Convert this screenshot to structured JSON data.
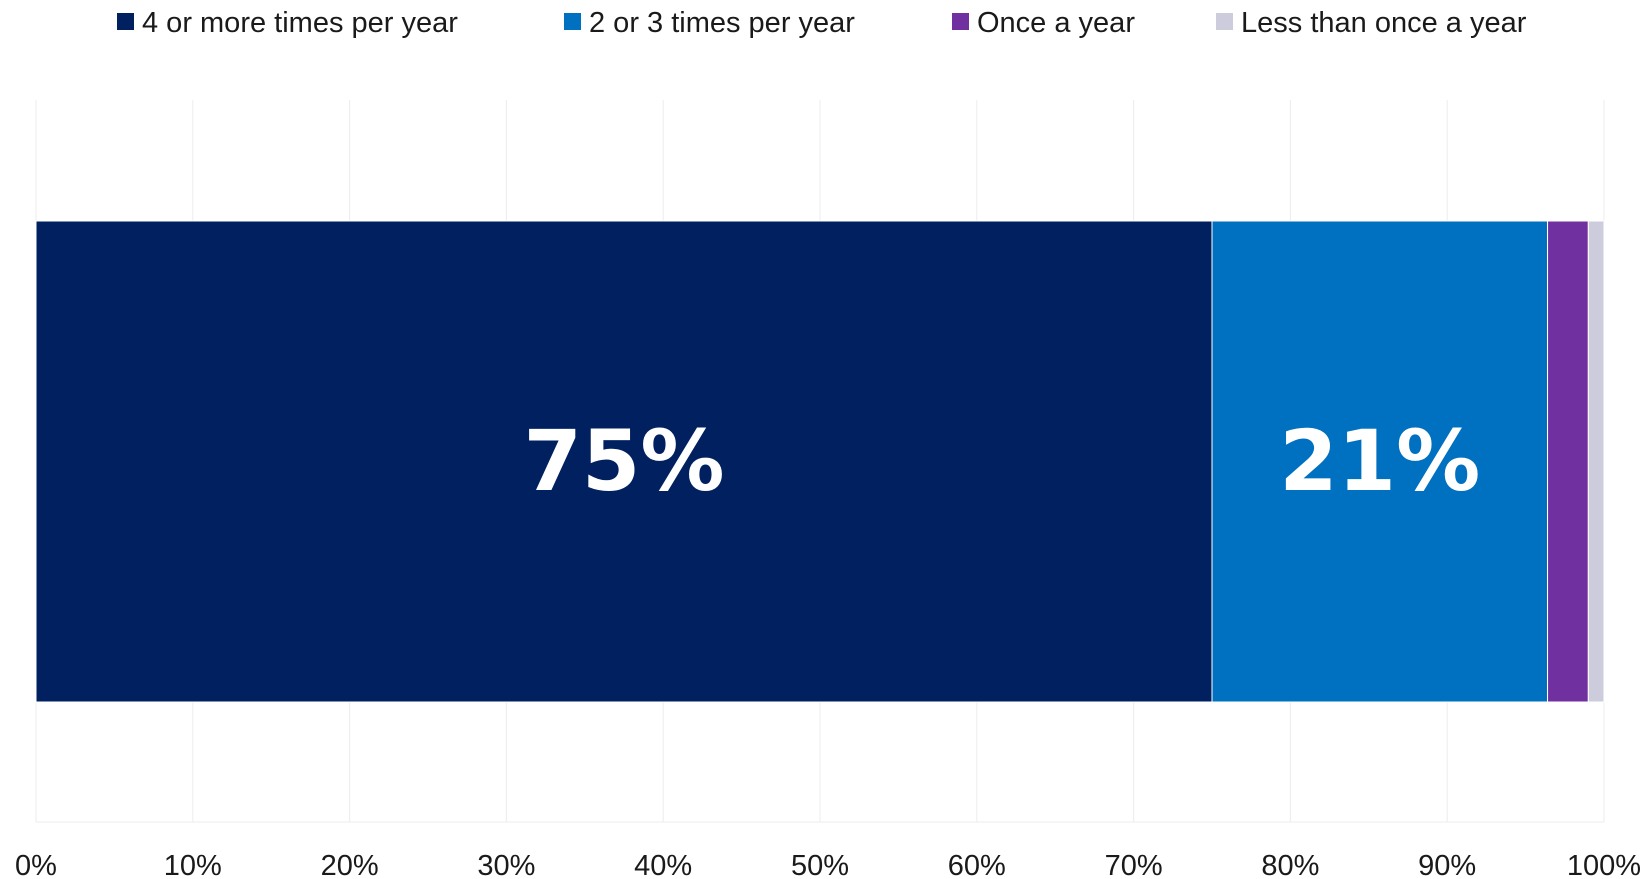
{
  "chart_data": {
    "type": "bar",
    "orientation": "horizontal",
    "stacked": true,
    "categories": [
      ""
    ],
    "series": [
      {
        "name": "4 or more times per year",
        "values": [
          75
        ],
        "color": "#002060",
        "label": "75%"
      },
      {
        "name": "2 or 3 times per year",
        "values": [
          21.4
        ],
        "color": "#0070C0",
        "label": "21%"
      },
      {
        "name": "Once a year",
        "values": [
          2.6
        ],
        "color": "#7030A0",
        "label": ""
      },
      {
        "name": "Less than once a year",
        "values": [
          1.0
        ],
        "color": "#CCCCDD",
        "label": ""
      }
    ],
    "x_ticks": [
      "0%",
      "10%",
      "20%",
      "30%",
      "40%",
      "50%",
      "60%",
      "70%",
      "80%",
      "90%",
      "100%"
    ],
    "xlim": [
      0,
      100
    ],
    "grid": true,
    "legend_position": "top"
  }
}
